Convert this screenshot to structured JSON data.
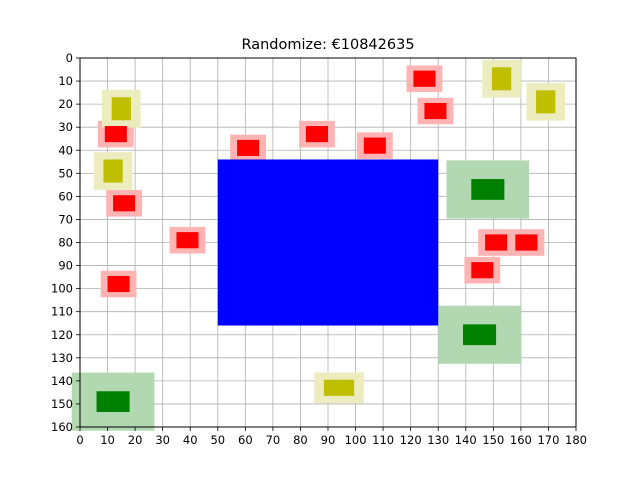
{
  "title": "Randomize: €10842635",
  "colors": {
    "grid": "#b0b0b0",
    "axis": "#000000",
    "blue": "#0000ff",
    "red": "#ff0000",
    "red_halo": "#ffb3b3",
    "yellow": "#bfbf00",
    "yellow_halo": "#ececbf",
    "green": "#008000",
    "green_halo": "#b2d8b2"
  },
  "axes": {
    "x_ticks": [
      "0",
      "10",
      "20",
      "30",
      "40",
      "50",
      "60",
      "70",
      "80",
      "90",
      "100",
      "110",
      "120",
      "130",
      "140",
      "150",
      "160",
      "170",
      "180"
    ],
    "y_ticks": [
      "0",
      "10",
      "20",
      "30",
      "40",
      "50",
      "60",
      "70",
      "80",
      "90",
      "100",
      "110",
      "120",
      "130",
      "140",
      "150",
      "160"
    ]
  },
  "chart_data": {
    "type": "scatter",
    "title": "Randomize: €10842635",
    "xlim": [
      0,
      180
    ],
    "ylim": [
      160,
      0
    ],
    "grid": true,
    "blocks": [
      {
        "kind": "blue",
        "x0": 50,
        "x1": 130,
        "y0": 44,
        "y1": 116
      }
    ],
    "items": [
      {
        "color": "red",
        "x": 125,
        "y": 9,
        "w": 8,
        "h": 7
      },
      {
        "color": "red",
        "x": 129,
        "y": 23,
        "w": 8,
        "h": 7
      },
      {
        "color": "red",
        "x": 13,
        "y": 33,
        "w": 8,
        "h": 7
      },
      {
        "color": "red",
        "x": 86,
        "y": 33,
        "w": 8,
        "h": 7
      },
      {
        "color": "red",
        "x": 61,
        "y": 39,
        "w": 8,
        "h": 7
      },
      {
        "color": "red",
        "x": 107,
        "y": 38,
        "w": 8,
        "h": 7
      },
      {
        "color": "red",
        "x": 16,
        "y": 63,
        "w": 8,
        "h": 7
      },
      {
        "color": "red",
        "x": 39,
        "y": 79,
        "w": 8,
        "h": 7
      },
      {
        "color": "red",
        "x": 151,
        "y": 80,
        "w": 8,
        "h": 7
      },
      {
        "color": "red",
        "x": 162,
        "y": 80,
        "w": 8,
        "h": 7
      },
      {
        "color": "red",
        "x": 146,
        "y": 92,
        "w": 8,
        "h": 7
      },
      {
        "color": "red",
        "x": 14,
        "y": 98,
        "w": 8,
        "h": 7
      },
      {
        "color": "yellow",
        "x": 15,
        "y": 22,
        "w": 7,
        "h": 10
      },
      {
        "color": "yellow",
        "x": 12,
        "y": 49,
        "w": 7,
        "h": 10
      },
      {
        "color": "yellow",
        "x": 153,
        "y": 9,
        "w": 7,
        "h": 10
      },
      {
        "color": "yellow",
        "x": 169,
        "y": 19,
        "w": 7,
        "h": 10
      },
      {
        "color": "yellow",
        "x": 94,
        "y": 143,
        "w": 11,
        "h": 7
      },
      {
        "color": "green",
        "x": 148,
        "y": 57,
        "w": 12,
        "h": 9
      },
      {
        "color": "green",
        "x": 145,
        "y": 120,
        "w": 12,
        "h": 9
      },
      {
        "color": "green",
        "x": 12,
        "y": 149,
        "w": 12,
        "h": 9
      }
    ]
  }
}
